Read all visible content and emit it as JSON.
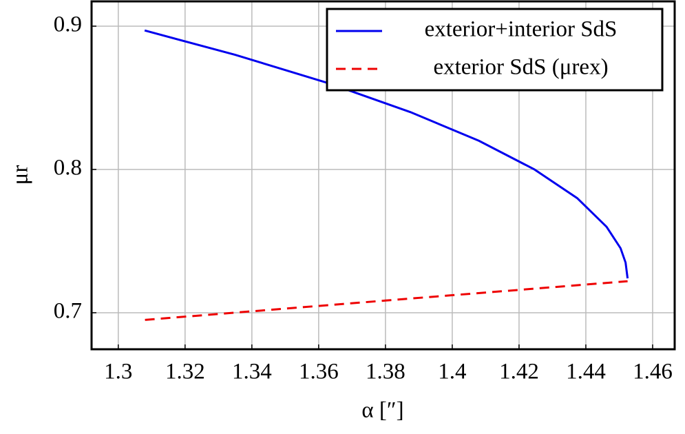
{
  "chart_data": {
    "type": "line",
    "x_label": "α [″]",
    "y_label": "μr",
    "xlim": [
      1.292,
      1.4666
    ],
    "ylim": [
      0.6745,
      0.9173
    ],
    "xticks": [
      1.3,
      1.32,
      1.34,
      1.36,
      1.38,
      1.4,
      1.42,
      1.44,
      1.46
    ],
    "yticks": [
      0.7,
      0.8,
      0.9
    ],
    "grid": true,
    "legend": "top-right",
    "series": [
      {
        "name": "exterior+interior SdS",
        "color": "#0000ee",
        "dash": false,
        "x": [
          1.3079,
          1.335,
          1.3632,
          1.3875,
          1.408,
          1.4246,
          1.4374,
          1.4462,
          1.4504,
          1.4519,
          1.4525
        ],
        "values": [
          0.897,
          0.88,
          0.86,
          0.84,
          0.82,
          0.8,
          0.78,
          0.76,
          0.745,
          0.735,
          0.724
        ]
      },
      {
        "name": "exterior SdS (μrex)",
        "color": "#ee0000",
        "dash": true,
        "x": [
          1.308,
          1.38,
          1.4525
        ],
        "values": [
          0.695,
          0.7085,
          0.722
        ]
      }
    ]
  }
}
